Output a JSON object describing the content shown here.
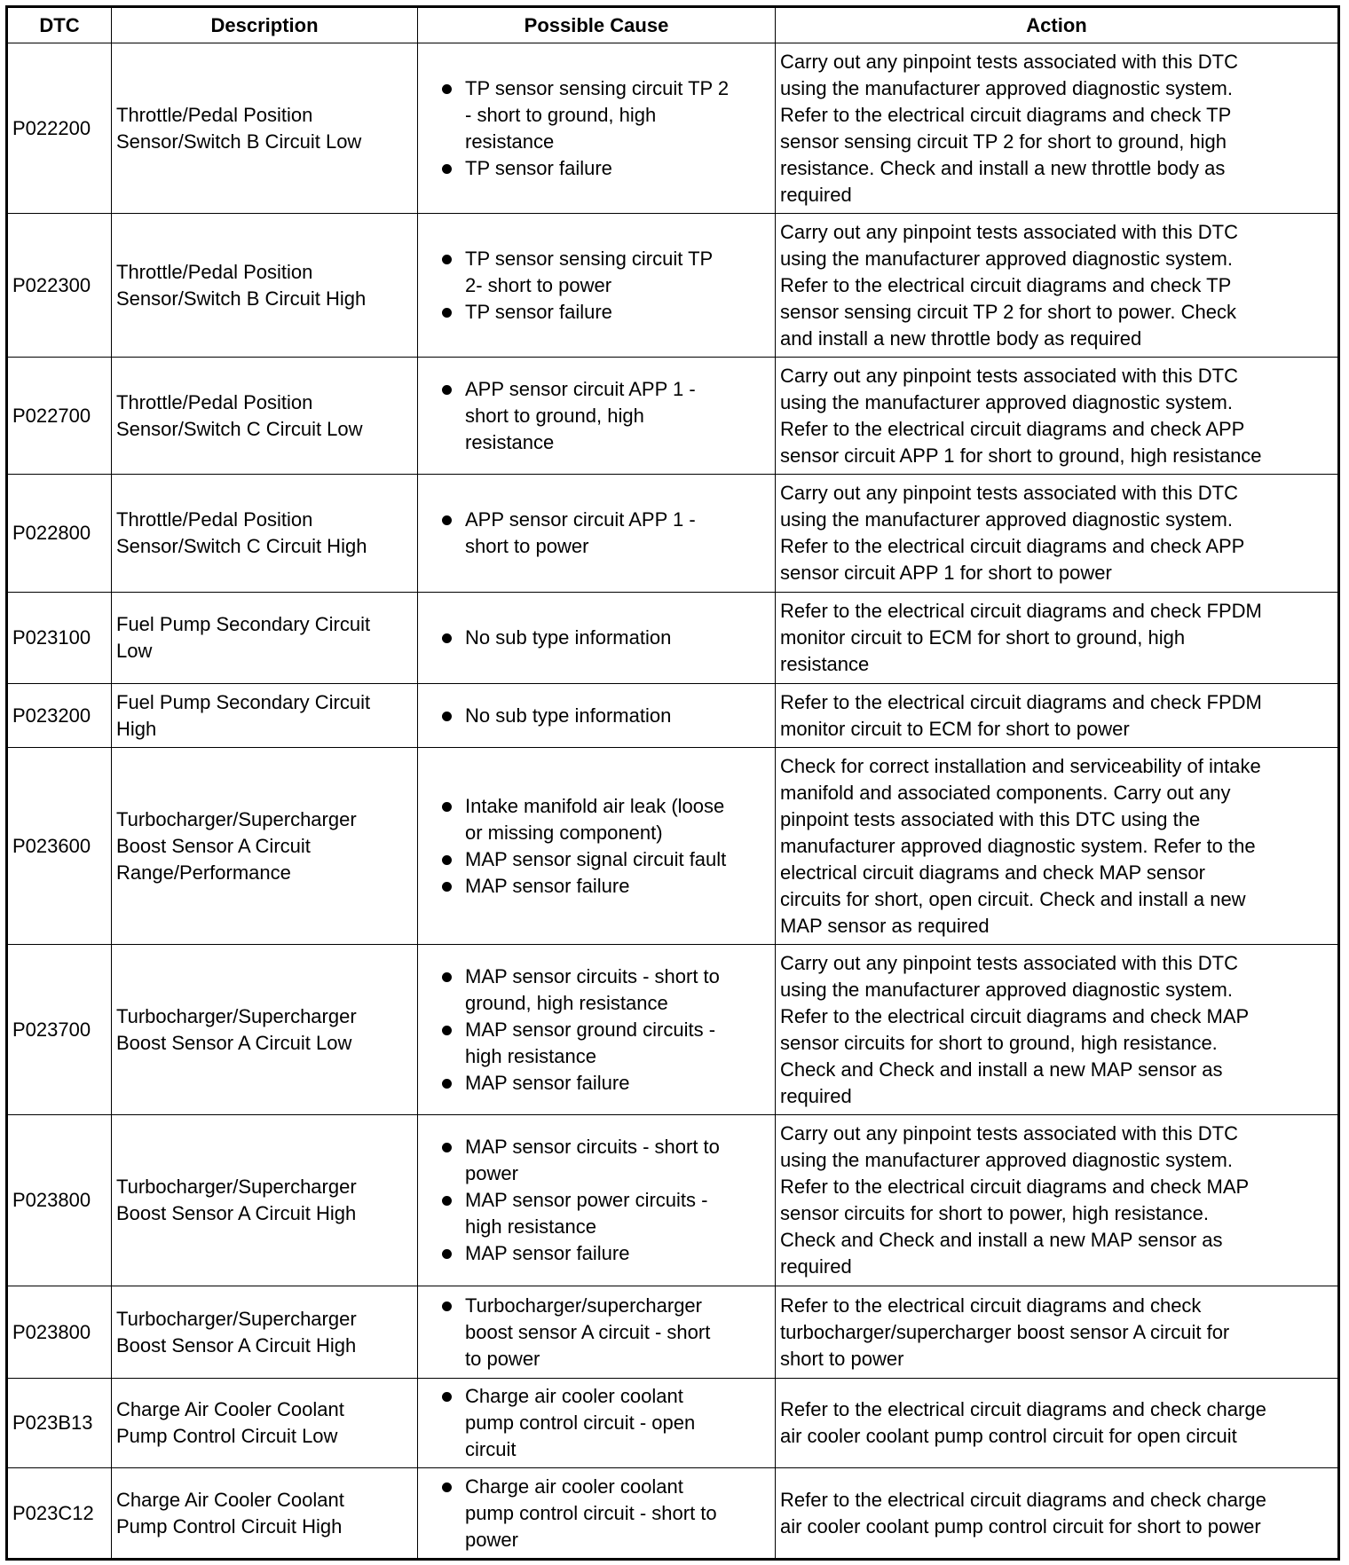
{
  "headers": [
    "DTC",
    "Description",
    "Possible Cause",
    "Action"
  ],
  "rows": [
    {
      "dtc": "P022200",
      "description": "Throttle/Pedal Position\nSensor/Switch B Circuit Low",
      "causes": [
        "TP sensor sensing circuit TP 2\n- short to ground, high\nresistance",
        "TP sensor failure"
      ],
      "action": "Carry out any pinpoint tests associated with this DTC\nusing the manufacturer approved diagnostic system.\nRefer to the electrical circuit diagrams and check TP\nsensor sensing circuit TP 2 for short to ground, high\nresistance. Check and install a new throttle body as\nrequired"
    },
    {
      "dtc": "P022300",
      "description": "Throttle/Pedal Position\nSensor/Switch B Circuit High",
      "causes": [
        "TP sensor sensing circuit TP\n2- short to power",
        "TP sensor failure"
      ],
      "action": "Carry out any pinpoint tests associated with this DTC\nusing the manufacturer approved diagnostic system.\nRefer to the electrical circuit diagrams and check TP\nsensor sensing circuit TP 2 for short to power. Check\nand install a new throttle body as required"
    },
    {
      "dtc": "P022700",
      "description": "Throttle/Pedal Position\nSensor/Switch C Circuit Low",
      "causes": [
        "APP sensor circuit APP 1 -\nshort to ground, high\nresistance"
      ],
      "action": "Carry out any pinpoint tests associated with this DTC\nusing the manufacturer approved diagnostic system.\nRefer to the electrical circuit diagrams and check APP\nsensor circuit APP 1 for short to ground, high resistance"
    },
    {
      "dtc": "P022800",
      "description": "Throttle/Pedal Position\nSensor/Switch C Circuit High",
      "causes": [
        "APP sensor circuit APP 1 -\nshort to power"
      ],
      "action": "Carry out any pinpoint tests associated with this DTC\nusing the manufacturer approved diagnostic system.\nRefer to the electrical circuit diagrams and check APP\nsensor circuit APP 1 for short to power"
    },
    {
      "dtc": "P023100",
      "description": "Fuel Pump Secondary Circuit\nLow",
      "causes": [
        "No sub type information"
      ],
      "action": "Refer to the electrical circuit diagrams and check FPDM\nmonitor circuit to ECM for short to ground, high\nresistance"
    },
    {
      "dtc": "P023200",
      "description": "Fuel Pump Secondary Circuit\nHigh",
      "causes": [
        "No sub type information"
      ],
      "action": "Refer to the electrical circuit diagrams and check FPDM\nmonitor circuit to ECM for short to power"
    },
    {
      "dtc": "P023600",
      "description": "Turbocharger/Supercharger\nBoost Sensor A Circuit\nRange/Performance",
      "causes": [
        "Intake manifold air leak (loose\nor missing component)",
        "MAP sensor signal circuit fault",
        "MAP sensor failure"
      ],
      "action": "Check for correct installation and serviceability of intake\nmanifold and associated components. Carry out any\npinpoint tests associated with this DTC using the\nmanufacturer approved diagnostic system. Refer to the\nelectrical circuit diagrams and check MAP sensor\ncircuits for short, open circuit. Check and install a new\nMAP sensor as required"
    },
    {
      "dtc": "P023700",
      "description": "Turbocharger/Supercharger\nBoost Sensor A Circuit Low",
      "causes": [
        "MAP sensor circuits - short to\nground, high resistance",
        "MAP sensor ground circuits -\nhigh resistance",
        "MAP sensor failure"
      ],
      "action": "Carry out any pinpoint tests associated with this DTC\nusing the manufacturer approved diagnostic system.\nRefer to the electrical circuit diagrams and check MAP\nsensor circuits for short to ground, high resistance.\nCheck and Check and install a new MAP sensor as\nrequired"
    },
    {
      "dtc": "P023800",
      "description": "Turbocharger/Supercharger\nBoost Sensor A Circuit High",
      "causes": [
        "MAP sensor circuits - short to\npower",
        "MAP sensor power circuits -\nhigh resistance",
        "MAP sensor failure"
      ],
      "action": "Carry out any pinpoint tests associated with this DTC\nusing the manufacturer approved diagnostic system.\nRefer to the electrical circuit diagrams and check MAP\nsensor circuits for short to power, high resistance.\nCheck and Check and install a new MAP sensor as\nrequired"
    },
    {
      "dtc": "P023800",
      "description": "Turbocharger/Supercharger\nBoost Sensor A Circuit High",
      "causes": [
        "Turbocharger/supercharger\nboost sensor A circuit - short\nto power"
      ],
      "action": "Refer to the electrical circuit diagrams and check\nturbocharger/supercharger boost sensor A circuit for\nshort to power"
    },
    {
      "dtc": "P023B13",
      "description": "Charge Air Cooler Coolant\nPump Control Circuit Low",
      "causes": [
        "Charge air cooler coolant\npump control circuit - open\ncircuit"
      ],
      "action": "Refer to the electrical circuit diagrams and check charge\nair cooler coolant pump control circuit for open circuit"
    },
    {
      "dtc": "P023C12",
      "description": "Charge Air Cooler Coolant\nPump Control Circuit High",
      "causes": [
        "Charge air cooler coolant\npump control circuit - short to\npower"
      ],
      "action": "Refer to the electrical circuit diagrams and check charge\nair cooler coolant pump control circuit for short to power"
    }
  ]
}
